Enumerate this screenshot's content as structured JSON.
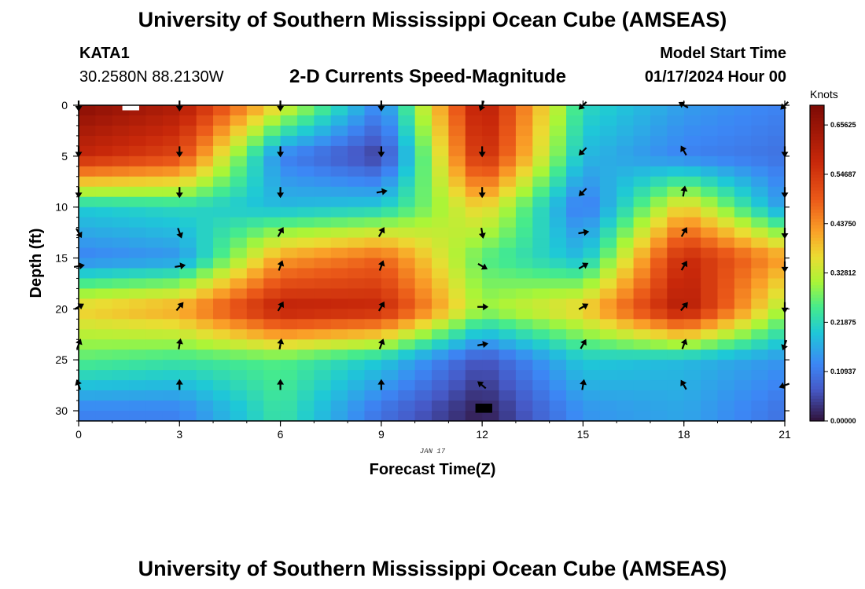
{
  "title": "University of Southern Mississippi Ocean Cube (AMSEAS)",
  "station": {
    "id": "KATA1",
    "coords": "30.2580N  88.2130W"
  },
  "model": {
    "start_label": "Model Start Time",
    "start_value": "01/17/2024 Hour 00"
  },
  "chart_data": {
    "type": "heatmap",
    "title": "2-D Currents Speed-Magnitude",
    "xlabel": "Forecast Time(Z)",
    "ylabel": "Depth (ft)",
    "date_label": "JAN 17",
    "x_ticks": [
      "0",
      "3",
      "6",
      "9",
      "12",
      "15",
      "18",
      "21"
    ],
    "y_ticks": [
      "0",
      "5",
      "10",
      "15",
      "20",
      "25",
      "30"
    ],
    "xlim": [
      0,
      21
    ],
    "ylim": [
      0,
      31
    ],
    "colorbar": {
      "unit": "Knots",
      "ticks": [
        "0.65625",
        "0.54687",
        "0.43750",
        "0.32812",
        "0.21875",
        "0.10937",
        "0.00000"
      ],
      "range": [
        0,
        0.7
      ]
    },
    "speed_grid": {
      "times": [
        0,
        3,
        6,
        9,
        12,
        15,
        18,
        21
      ],
      "depths": [
        0,
        5,
        10,
        15,
        20,
        25,
        30
      ],
      "values": [
        [
          0.68,
          0.62,
          0.36,
          0.12,
          0.62,
          0.22,
          0.15,
          0.12
        ],
        [
          0.58,
          0.52,
          0.12,
          0.04,
          0.58,
          0.18,
          0.12,
          0.1
        ],
        [
          0.2,
          0.22,
          0.18,
          0.2,
          0.38,
          0.1,
          0.38,
          0.14
        ],
        [
          0.12,
          0.14,
          0.42,
          0.48,
          0.26,
          0.18,
          0.58,
          0.42
        ],
        [
          0.38,
          0.42,
          0.6,
          0.58,
          0.3,
          0.38,
          0.62,
          0.3
        ],
        [
          0.26,
          0.24,
          0.26,
          0.2,
          0.06,
          0.2,
          0.18,
          0.14
        ],
        [
          0.12,
          0.12,
          0.24,
          0.1,
          0.01,
          0.14,
          0.16,
          0.1
        ]
      ]
    },
    "vectors": {
      "depths": [
        0,
        4.5,
        8.5,
        12.5,
        15.8,
        19.8,
        23.5,
        27.5
      ],
      "times": [
        0,
        3,
        6,
        9,
        12,
        15,
        18,
        21
      ],
      "direction_deg": [
        [
          180,
          180,
          180,
          180,
          200,
          225,
          300,
          225
        ],
        [
          180,
          180,
          180,
          180,
          180,
          225,
          330,
          180
        ],
        [
          180,
          180,
          180,
          80,
          180,
          225,
          10,
          180
        ],
        [
          150,
          160,
          30,
          30,
          170,
          80,
          30,
          180
        ],
        [
          80,
          80,
          20,
          20,
          120,
          60,
          30,
          180
        ],
        [
          60,
          40,
          30,
          30,
          90,
          60,
          40,
          180
        ],
        [
          20,
          10,
          10,
          20,
          80,
          30,
          20,
          200
        ],
        [
          340,
          0,
          0,
          0,
          310,
          10,
          330,
          250
        ]
      ]
    },
    "patches": [
      {
        "color": "#ffffff",
        "t0": 1.3,
        "t1": 1.8,
        "d0": 0,
        "d1": 0.5
      },
      {
        "color": "#000000",
        "t0": 11.8,
        "t1": 12.3,
        "d0": 29.3,
        "d1": 30.2
      }
    ]
  }
}
